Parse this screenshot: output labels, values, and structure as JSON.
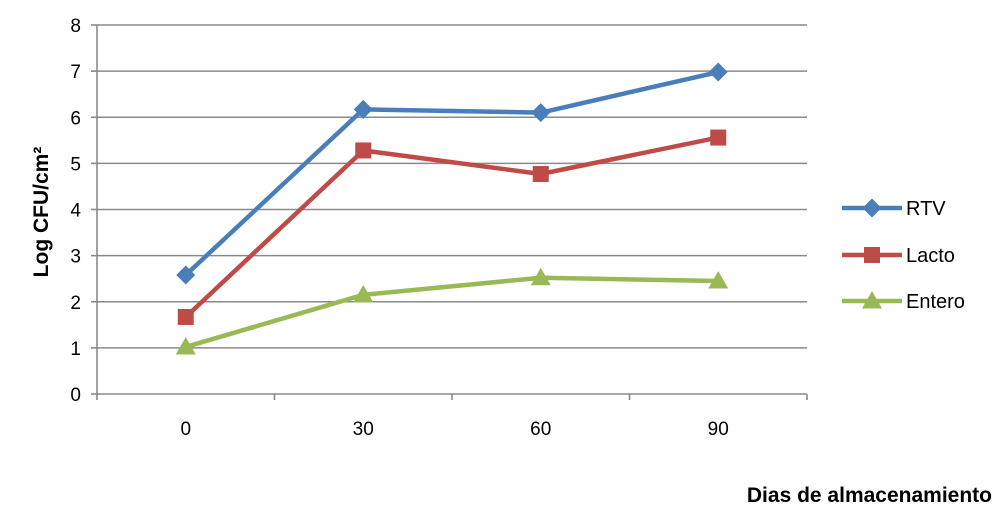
{
  "chart_data": {
    "type": "line",
    "title": "",
    "xlabel": "Dias de almacenamiento",
    "ylabel": "Log CFU/cm²",
    "categories": [
      "0",
      "30",
      "60",
      "90"
    ],
    "ylim": [
      0,
      8
    ],
    "yticks": [
      "0",
      "1",
      "2",
      "3",
      "4",
      "5",
      "6",
      "7",
      "8"
    ],
    "grid": true,
    "legend_position": "right",
    "series": [
      {
        "name": "RTV",
        "values": [
          2.58,
          6.17,
          6.1,
          6.98
        ],
        "color": "#4a7ebb",
        "marker": "diamond"
      },
      {
        "name": "Lacto",
        "values": [
          1.67,
          5.28,
          4.77,
          5.56
        ],
        "color": "#be4b48",
        "marker": "square"
      },
      {
        "name": "Entero",
        "values": [
          1.02,
          2.15,
          2.52,
          2.45
        ],
        "color": "#98b954",
        "marker": "triangle"
      }
    ]
  }
}
